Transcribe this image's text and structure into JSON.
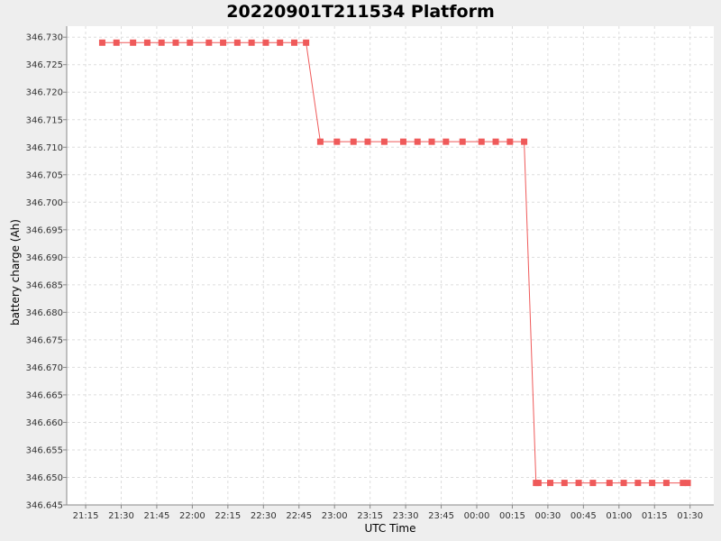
{
  "chart_data": {
    "type": "line",
    "title": "20220901T211534 Platform",
    "xlabel": "UTC Time",
    "ylabel": "battery charge (Ah)",
    "series_color": "#ef5a5a",
    "grid": true,
    "x_ticks": [
      "21:15",
      "21:30",
      "21:45",
      "22:00",
      "22:15",
      "22:30",
      "22:45",
      "23:00",
      "23:15",
      "23:30",
      "23:45",
      "00:00",
      "00:15",
      "00:30",
      "00:45",
      "01:00",
      "01:15",
      "01:30"
    ],
    "y_ticks": [
      "346.645",
      "346.650",
      "346.655",
      "346.660",
      "346.665",
      "346.670",
      "346.675",
      "346.680",
      "346.685",
      "346.690",
      "346.695",
      "346.700",
      "346.705",
      "346.710",
      "346.715",
      "346.720",
      "346.725",
      "346.730"
    ],
    "xlim": [
      "21:07",
      "01:40"
    ],
    "ylim": [
      346.645,
      346.732
    ],
    "series": [
      {
        "x": [
          "21:22",
          "21:28",
          "21:35",
          "21:41",
          "21:47",
          "21:53",
          "21:59",
          "22:07",
          "22:13",
          "22:19",
          "22:25",
          "22:31",
          "22:37",
          "22:43",
          "22:48",
          "22:54",
          "23:01",
          "23:08",
          "23:14",
          "23:21",
          "23:29",
          "23:35",
          "23:41",
          "23:47",
          "23:54",
          "00:02",
          "00:08",
          "00:14",
          "00:20",
          "00:25",
          "00:26",
          "00:31",
          "00:37",
          "00:43",
          "00:49",
          "00:56",
          "01:02",
          "01:08",
          "01:14",
          "01:20",
          "01:27",
          "01:29"
        ],
        "y": [
          346.729,
          346.729,
          346.729,
          346.729,
          346.729,
          346.729,
          346.729,
          346.729,
          346.729,
          346.729,
          346.729,
          346.729,
          346.729,
          346.729,
          346.729,
          346.711,
          346.711,
          346.711,
          346.711,
          346.711,
          346.711,
          346.711,
          346.711,
          346.711,
          346.711,
          346.711,
          346.711,
          346.711,
          346.711,
          346.649,
          346.649,
          346.649,
          346.649,
          346.649,
          346.649,
          346.649,
          346.649,
          346.649,
          346.649,
          346.649,
          346.649,
          346.649
        ]
      }
    ]
  }
}
